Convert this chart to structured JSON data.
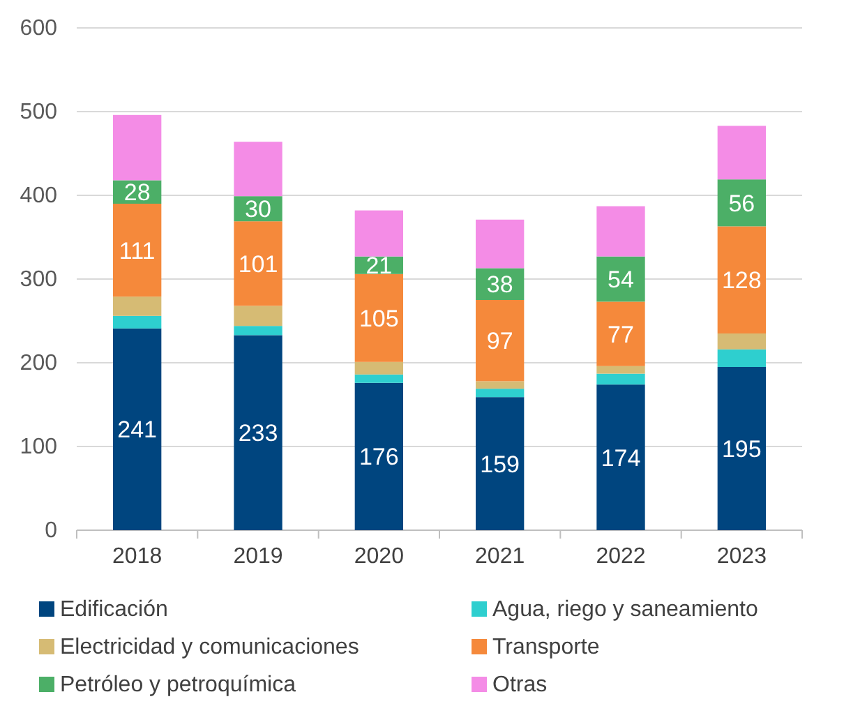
{
  "chart_data": {
    "type": "bar",
    "stacked": true,
    "categories": [
      "2018",
      "2019",
      "2020",
      "2021",
      "2022",
      "2023"
    ],
    "series": [
      {
        "name": "Edificación",
        "color": "#00457f",
        "values": [
          241,
          233,
          176,
          159,
          174,
          195
        ],
        "value_labels": [
          "241",
          "233",
          "176",
          "159",
          "174",
          "195"
        ]
      },
      {
        "name": "Agua, riego y saneamiento",
        "color": "#2ecfcf",
        "values": [
          15,
          11,
          10,
          10,
          13,
          21
        ]
      },
      {
        "name": "Electricidad y comunicaciones",
        "color": "#d6bb74",
        "values": [
          23,
          24,
          15,
          9,
          9,
          19
        ]
      },
      {
        "name": "Transporte",
        "color": "#f5893b",
        "values": [
          111,
          101,
          105,
          97,
          77,
          128
        ],
        "value_labels": [
          "111",
          "101",
          "105",
          "97",
          "77",
          "128"
        ]
      },
      {
        "name": "Petróleo y petroquímica",
        "color": "#4caf67",
        "values": [
          28,
          30,
          21,
          38,
          54,
          56
        ],
        "value_labels": [
          "28",
          "30",
          "21",
          "38",
          "54",
          "56"
        ]
      },
      {
        "name": "Otras",
        "color": "#f48ce6",
        "values": [
          78,
          65,
          55,
          58,
          60,
          64
        ]
      }
    ],
    "ylim": [
      0,
      600
    ],
    "yticks": [
      0,
      100,
      200,
      300,
      400,
      500,
      600
    ],
    "grid": "y",
    "legend": "bottom"
  }
}
